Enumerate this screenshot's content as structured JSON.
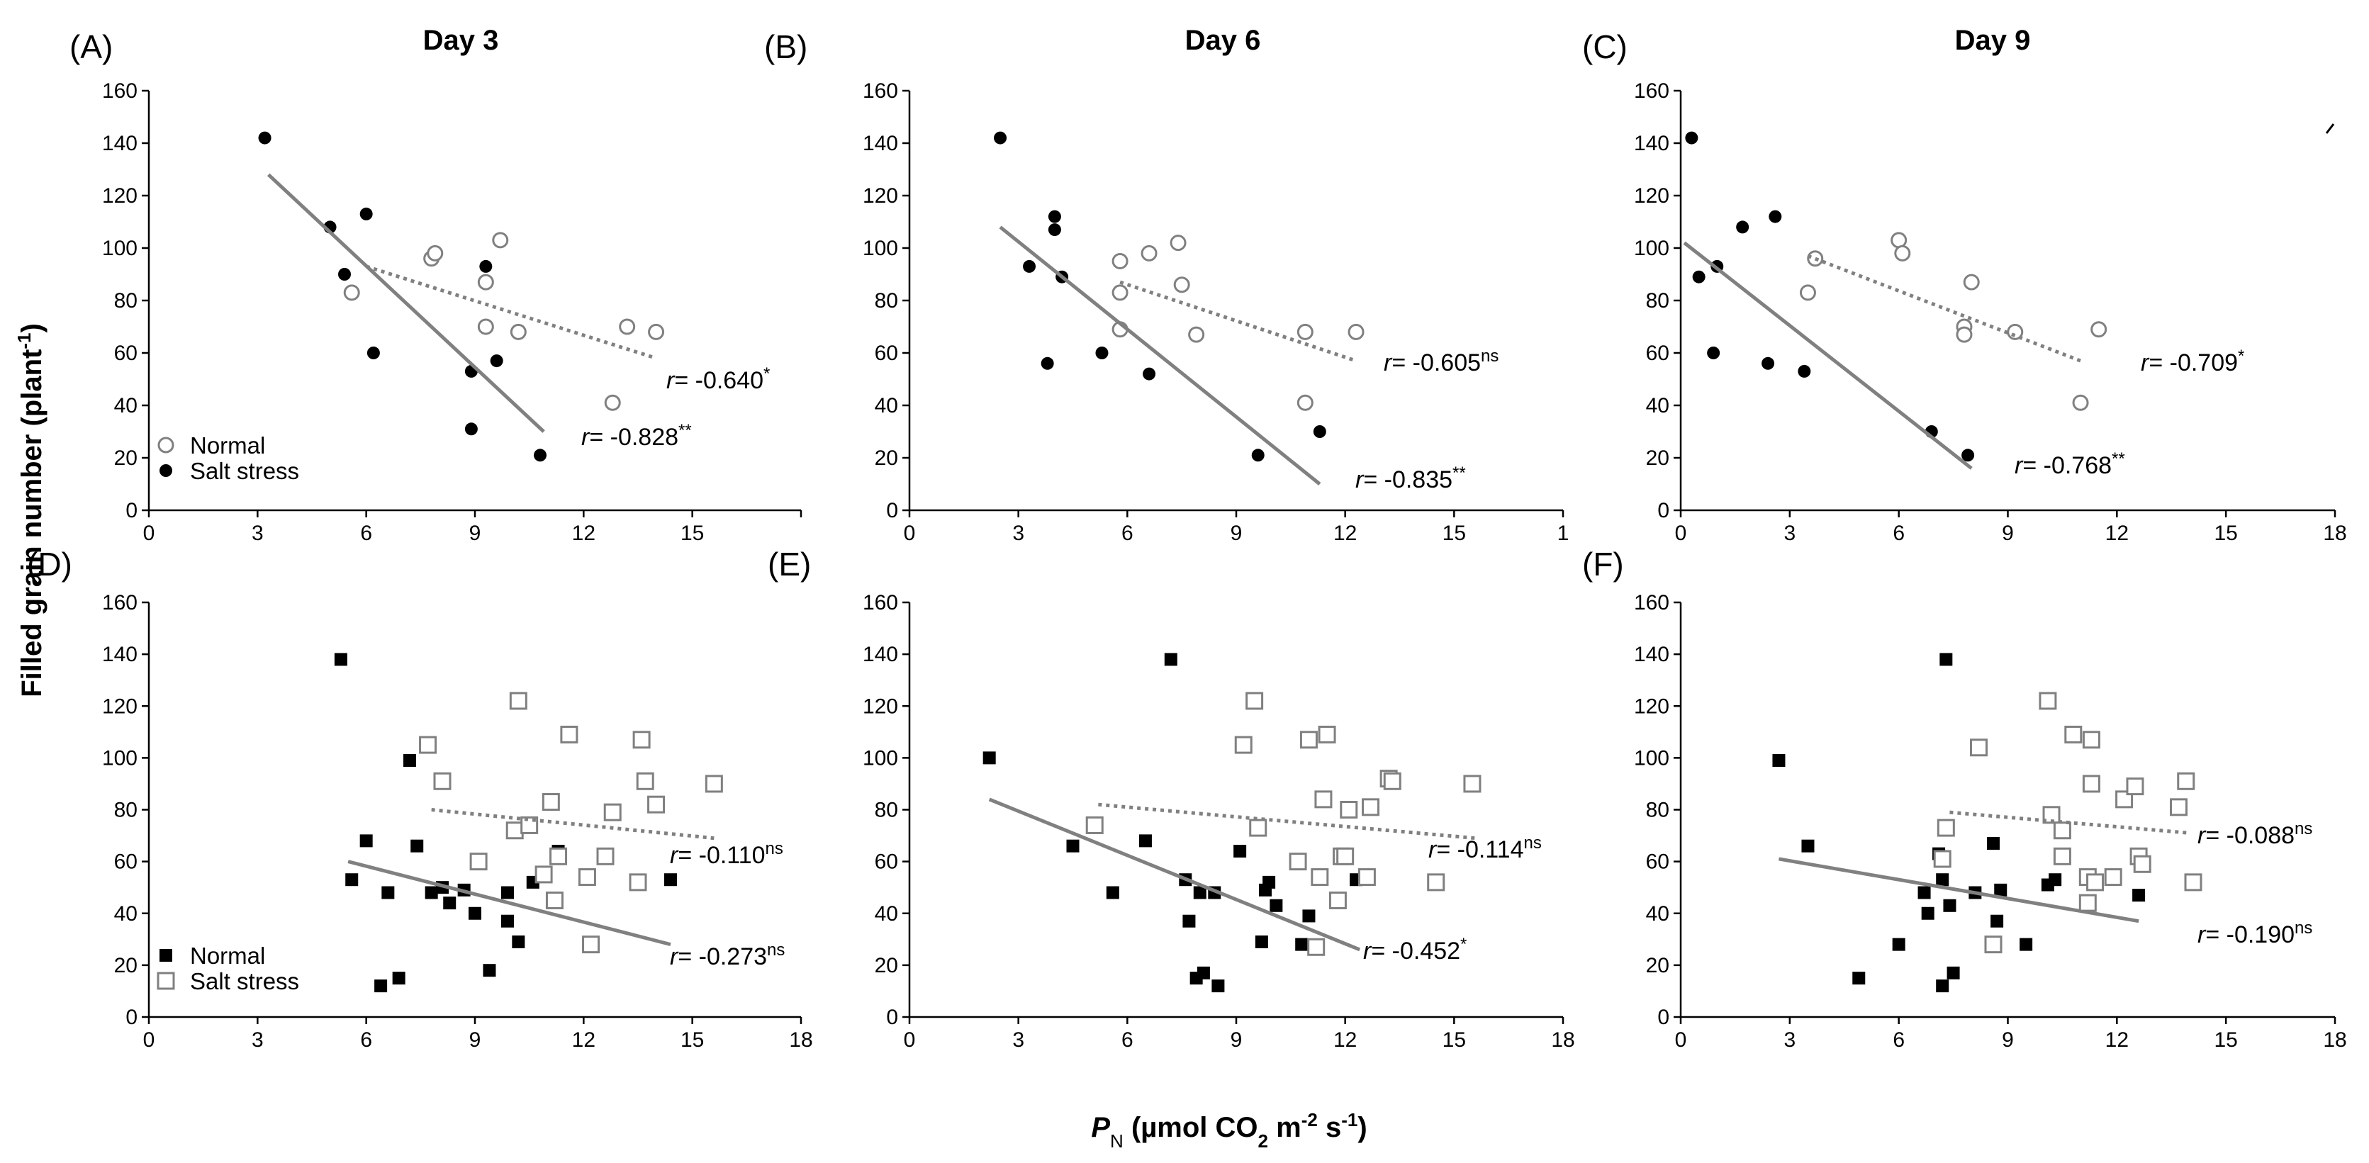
{
  "figure": {
    "ylabel": "Filled grain number (plant",
    "ylabel_sup": "-1",
    "ylabel_end": ")",
    "xlabel_italic": "P",
    "xlabel_sub": "N",
    "xlabel_part1": " (µmol CO",
    "xlabel_sub2": "2",
    "xlabel_part2": " m",
    "xlabel_sup1": "-2",
    "xlabel_part3": " s",
    "xlabel_sup2": "-1",
    "xlabel_end": ")",
    "colors": {
      "gray": "#808080",
      "black": "#000000"
    }
  },
  "chart_data": [
    {
      "id": "A",
      "letter": "(A)",
      "title": "Day 3",
      "type": "scatter",
      "marker": "circle",
      "ylim": [
        0,
        160
      ],
      "yticks": [
        0,
        20,
        40,
        60,
        80,
        100,
        120,
        140,
        160
      ],
      "xlim": [
        0,
        18
      ],
      "xticks": [
        "0",
        "3",
        "6",
        "9",
        "12",
        "15"
      ],
      "legend": [
        "Normal",
        "Salt stress"
      ],
      "series": [
        {
          "name": "Normal",
          "filled": false,
          "points": [
            [
              5.6,
              83
            ],
            [
              7.8,
              96
            ],
            [
              7.9,
              98
            ],
            [
              9.3,
              87
            ],
            [
              9.3,
              70
            ],
            [
              9.7,
              103
            ],
            [
              10.2,
              68
            ],
            [
              12.8,
              41
            ],
            [
              13.2,
              70
            ],
            [
              14.0,
              68
            ]
          ],
          "fit": {
            "x": [
              6.0,
              14.0
            ],
            "y": [
              93,
              58
            ]
          },
          "r_italic": "r",
          "r_text": "= -0.640",
          "r_sup": "*"
        },
        {
          "name": "Salt stress",
          "filled": true,
          "points": [
            [
              3.2,
              142
            ],
            [
              5.0,
              108
            ],
            [
              5.4,
              90
            ],
            [
              6.0,
              113
            ],
            [
              6.2,
              60
            ],
            [
              8.9,
              53
            ],
            [
              8.9,
              31
            ],
            [
              9.3,
              93
            ],
            [
              9.6,
              57
            ],
            [
              10.8,
              21
            ]
          ],
          "fit": {
            "x": [
              3.3,
              10.9
            ],
            "y": [
              128,
              30
            ]
          },
          "r_italic": "r",
          "r_text": "= -0.828",
          "r_sup": "**"
        }
      ]
    },
    {
      "id": "B",
      "letter": "(B)",
      "title": "Day 6",
      "type": "scatter",
      "marker": "circle",
      "ylim": [
        0,
        160
      ],
      "yticks": [
        0,
        20,
        40,
        60,
        80,
        100,
        120,
        140,
        160
      ],
      "xlim": [
        0,
        18
      ],
      "xticks": [
        "0",
        "3",
        "6",
        "9",
        "12",
        "15",
        "1"
      ],
      "series": [
        {
          "name": "Normal",
          "filled": false,
          "points": [
            [
              5.8,
              95
            ],
            [
              5.8,
              83
            ],
            [
              5.8,
              69
            ],
            [
              6.6,
              98
            ],
            [
              7.4,
              102
            ],
            [
              7.5,
              86
            ],
            [
              7.9,
              67
            ],
            [
              10.9,
              68
            ],
            [
              10.9,
              41
            ],
            [
              12.3,
              68
            ]
          ],
          "fit": {
            "x": [
              5.8,
              12.3
            ],
            "y": [
              87,
              57
            ]
          },
          "r_italic": "r",
          "r_text": "= -0.605",
          "r_sup": "ns"
        },
        {
          "name": "Salt stress",
          "filled": true,
          "points": [
            [
              2.5,
              142
            ],
            [
              3.3,
              93
            ],
            [
              3.8,
              56
            ],
            [
              4.0,
              112
            ],
            [
              4.0,
              107
            ],
            [
              4.2,
              89
            ],
            [
              5.3,
              60
            ],
            [
              6.6,
              52
            ],
            [
              9.6,
              21
            ],
            [
              11.3,
              30
            ]
          ],
          "fit": {
            "x": [
              2.5,
              11.3
            ],
            "y": [
              108,
              10
            ]
          },
          "r_italic": "r",
          "r_text": "= -0.835",
          "r_sup": "**"
        }
      ]
    },
    {
      "id": "C",
      "letter": "(C)",
      "title": "Day 9",
      "type": "scatter",
      "marker": "circle",
      "ylim": [
        0,
        160
      ],
      "yticks": [
        0,
        20,
        40,
        60,
        80,
        100,
        120,
        140,
        160
      ],
      "xlim": [
        0,
        18
      ],
      "xticks": [
        "0",
        "3",
        "6",
        "9",
        "12",
        "15",
        "18"
      ],
      "series": [
        {
          "name": "Normal",
          "filled": false,
          "points": [
            [
              3.5,
              83
            ],
            [
              3.7,
              96
            ],
            [
              6.0,
              103
            ],
            [
              6.1,
              98
            ],
            [
              8.0,
              87
            ],
            [
              7.8,
              70
            ],
            [
              7.8,
              67
            ],
            [
              9.2,
              68
            ],
            [
              11.0,
              41
            ],
            [
              11.5,
              69
            ]
          ],
          "fit": {
            "x": [
              3.5,
              11.0
            ],
            "y": [
              97,
              57
            ]
          },
          "r_italic": "r",
          "r_text": "= -0.709",
          "r_sup": "*"
        },
        {
          "name": "Salt stress",
          "filled": true,
          "points": [
            [
              0.3,
              142
            ],
            [
              0.5,
              89
            ],
            [
              0.9,
              60
            ],
            [
              1.0,
              93
            ],
            [
              1.7,
              108
            ],
            [
              2.4,
              56
            ],
            [
              2.6,
              112
            ],
            [
              3.4,
              53
            ],
            [
              6.9,
              30
            ],
            [
              7.9,
              21
            ]
          ],
          "fit": {
            "x": [
              0.1,
              8.0
            ],
            "y": [
              102,
              16
            ]
          },
          "r_italic": "r",
          "r_text": "= -0.768",
          "r_sup": "**"
        }
      ]
    },
    {
      "id": "D",
      "letter": "(D)",
      "title": "",
      "type": "scatter",
      "marker": "square",
      "ylim": [
        0,
        160
      ],
      "yticks": [
        0,
        20,
        40,
        60,
        80,
        100,
        120,
        140,
        160
      ],
      "xlim": [
        0,
        18
      ],
      "xticks": [
        "0",
        "3",
        "6",
        "9",
        "12",
        "15",
        "18"
      ],
      "legend": [
        "Normal",
        "Salt stress"
      ],
      "series": [
        {
          "name": "Normal",
          "filled": true,
          "points": [
            [
              5.3,
              138
            ],
            [
              5.6,
              53
            ],
            [
              6.0,
              68
            ],
            [
              6.4,
              12
            ],
            [
              6.6,
              48
            ],
            [
              6.9,
              15
            ],
            [
              7.2,
              99
            ],
            [
              7.4,
              66
            ],
            [
              7.8,
              48
            ],
            [
              8.1,
              50
            ],
            [
              8.3,
              44
            ],
            [
              8.7,
              49
            ],
            [
              9.0,
              40
            ],
            [
              9.4,
              18
            ],
            [
              9.9,
              48
            ],
            [
              9.9,
              37
            ],
            [
              10.2,
              29
            ],
            [
              10.6,
              52
            ],
            [
              11.3,
              64
            ],
            [
              14.4,
              53
            ]
          ],
          "fit": {
            "x": [
              5.5,
              14.4
            ],
            "y": [
              60,
              28
            ]
          },
          "r_italic": "r",
          "r_text": "= -0.273",
          "r_sup": "ns"
        },
        {
          "name": "Salt stress",
          "filled": false,
          "points": [
            [
              7.7,
              105
            ],
            [
              8.1,
              91
            ],
            [
              9.1,
              60
            ],
            [
              10.1,
              72
            ],
            [
              10.2,
              122
            ],
            [
              10.5,
              74
            ],
            [
              10.9,
              55
            ],
            [
              11.1,
              83
            ],
            [
              11.2,
              45
            ],
            [
              11.3,
              62
            ],
            [
              11.6,
              109
            ],
            [
              12.2,
              28
            ],
            [
              12.1,
              54
            ],
            [
              12.6,
              62
            ],
            [
              12.8,
              79
            ],
            [
              13.5,
              52
            ],
            [
              13.6,
              107
            ],
            [
              13.7,
              91
            ],
            [
              14.0,
              82
            ],
            [
              15.6,
              90
            ]
          ],
          "fit": {
            "x": [
              7.8,
              15.6
            ],
            "y": [
              80,
              69
            ]
          },
          "r_italic": "r",
          "r_text": "= -0.110",
          "r_sup": "ns"
        }
      ]
    },
    {
      "id": "E",
      "letter": "(E)",
      "title": "",
      "type": "scatter",
      "marker": "square",
      "ylim": [
        0,
        160
      ],
      "yticks": [
        0,
        20,
        40,
        60,
        80,
        100,
        120,
        140,
        160
      ],
      "xlim": [
        0,
        18
      ],
      "xticks": [
        "0",
        "3",
        "6",
        "9",
        "12",
        "15",
        "18"
      ],
      "series": [
        {
          "name": "Normal",
          "filled": true,
          "points": [
            [
              2.2,
              100
            ],
            [
              4.5,
              66
            ],
            [
              5.6,
              48
            ],
            [
              6.5,
              68
            ],
            [
              7.2,
              138
            ],
            [
              7.6,
              53
            ],
            [
              7.7,
              37
            ],
            [
              8.0,
              48
            ],
            [
              7.9,
              15
            ],
            [
              8.1,
              17
            ],
            [
              8.4,
              48
            ],
            [
              8.5,
              12
            ],
            [
              9.1,
              64
            ],
            [
              9.7,
              29
            ],
            [
              9.9,
              52
            ],
            [
              9.8,
              49
            ],
            [
              10.1,
              43
            ],
            [
              10.8,
              28
            ],
            [
              11.0,
              39
            ],
            [
              12.3,
              53
            ]
          ],
          "fit": {
            "x": [
              2.2,
              12.4
            ],
            "y": [
              84,
              26
            ]
          },
          "r_italic": "r",
          "r_text": "= -0.452",
          "r_sup": "*"
        },
        {
          "name": "Salt stress",
          "filled": false,
          "points": [
            [
              5.1,
              74
            ],
            [
              9.2,
              105
            ],
            [
              9.5,
              122
            ],
            [
              9.6,
              73
            ],
            [
              10.7,
              60
            ],
            [
              11.0,
              107
            ],
            [
              11.3,
              54
            ],
            [
              11.4,
              84
            ],
            [
              11.5,
              109
            ],
            [
              11.8,
              45
            ],
            [
              11.9,
              62
            ],
            [
              12.1,
              80
            ],
            [
              12.0,
              62
            ],
            [
              12.6,
              54
            ],
            [
              12.7,
              81
            ],
            [
              13.2,
              92
            ],
            [
              13.3,
              91
            ],
            [
              14.5,
              52
            ],
            [
              15.5,
              90
            ],
            [
              11.2,
              27
            ]
          ],
          "fit": {
            "x": [
              5.2,
              15.6
            ],
            "y": [
              82,
              69
            ]
          },
          "r_italic": "r",
          "r_text": "= -0.114",
          "r_sup": "ns"
        }
      ]
    },
    {
      "id": "F",
      "letter": "(F)",
      "title": "",
      "type": "scatter",
      "marker": "square",
      "ylim": [
        0,
        160
      ],
      "yticks": [
        0,
        20,
        40,
        60,
        80,
        100,
        120,
        140,
        160
      ],
      "xlim": [
        0,
        18
      ],
      "xticks": [
        "0",
        "3",
        "6",
        "9",
        "12",
        "15",
        "18"
      ],
      "series": [
        {
          "name": "Normal",
          "filled": true,
          "points": [
            [
              2.7,
              99
            ],
            [
              3.5,
              66
            ],
            [
              4.9,
              15
            ],
            [
              6.0,
              28
            ],
            [
              6.7,
              48
            ],
            [
              6.8,
              40
            ],
            [
              7.1,
              63
            ],
            [
              7.2,
              53
            ],
            [
              7.2,
              12
            ],
            [
              7.3,
              138
            ],
            [
              7.4,
              43
            ],
            [
              7.5,
              17
            ],
            [
              8.1,
              48
            ],
            [
              8.6,
              67
            ],
            [
              8.7,
              37
            ],
            [
              8.8,
              49
            ],
            [
              9.5,
              28
            ],
            [
              10.1,
              51
            ],
            [
              10.3,
              53
            ],
            [
              12.6,
              47
            ]
          ],
          "fit": {
            "x": [
              2.7,
              12.6
            ],
            "y": [
              61,
              37
            ]
          },
          "r_italic": "r",
          "r_text": "= -0.190",
          "r_sup": "ns"
        },
        {
          "name": "Salt stress",
          "filled": false,
          "points": [
            [
              7.2,
              61
            ],
            [
              7.3,
              73
            ],
            [
              8.2,
              104
            ],
            [
              8.6,
              28
            ],
            [
              10.1,
              122
            ],
            [
              10.2,
              78
            ],
            [
              10.5,
              72
            ],
            [
              10.5,
              62
            ],
            [
              10.8,
              109
            ],
            [
              11.2,
              54
            ],
            [
              11.3,
              107
            ],
            [
              11.3,
              90
            ],
            [
              11.4,
              52
            ],
            [
              11.9,
              54
            ],
            [
              12.2,
              84
            ],
            [
              12.5,
              89
            ],
            [
              12.6,
              62
            ],
            [
              12.7,
              59
            ],
            [
              13.7,
              81
            ],
            [
              13.9,
              91
            ],
            [
              14.1,
              52
            ],
            [
              11.2,
              44
            ]
          ],
          "fit": {
            "x": [
              7.4,
              14.0
            ],
            "y": [
              79,
              71
            ]
          },
          "r_italic": "r",
          "r_text": "= -0.088",
          "r_sup": "ns"
        }
      ]
    }
  ]
}
